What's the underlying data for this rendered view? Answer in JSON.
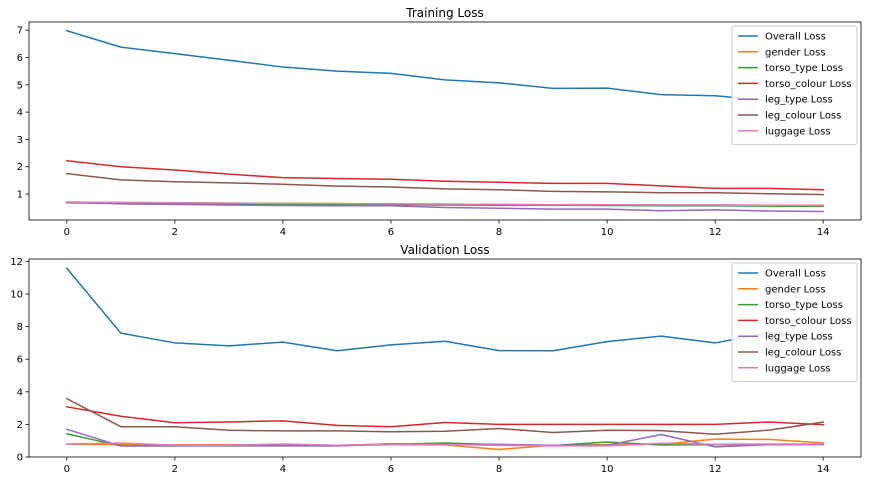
{
  "chart_data": [
    {
      "type": "line",
      "title": "Training Loss",
      "xlabel": "",
      "ylabel": "",
      "x": [
        0,
        1,
        2,
        3,
        4,
        5,
        6,
        7,
        8,
        9,
        10,
        11,
        12,
        13,
        14
      ],
      "xlim": [
        -0.7,
        14.7
      ],
      "ylim": [
        0.05,
        7.3
      ],
      "xticks": [
        0,
        2,
        4,
        6,
        8,
        10,
        12,
        14
      ],
      "yticks": [
        1,
        2,
        3,
        4,
        5,
        6,
        7
      ],
      "legend": "top-right",
      "series": [
        {
          "name": "Overall Loss",
          "color": "#1f77b4",
          "values": [
            6.98,
            6.38,
            6.14,
            5.9,
            5.65,
            5.5,
            5.42,
            5.18,
            5.07,
            4.87,
            4.88,
            4.64,
            4.6,
            4.42,
            4.38
          ]
        },
        {
          "name": "gender Loss",
          "color": "#ff7f0e",
          "values": [
            0.7,
            0.69,
            0.68,
            0.67,
            0.66,
            0.65,
            0.64,
            0.63,
            0.62,
            0.61,
            0.61,
            0.6,
            0.6,
            0.59,
            0.59
          ]
        },
        {
          "name": "torso_type Loss",
          "color": "#2ca02c",
          "values": [
            0.68,
            0.66,
            0.65,
            0.64,
            0.63,
            0.62,
            0.61,
            0.6,
            0.59,
            0.59,
            0.58,
            0.57,
            0.57,
            0.56,
            0.55
          ]
        },
        {
          "name": "torso_colour Loss",
          "color": "#d62728",
          "values": [
            2.22,
            2.0,
            1.88,
            1.73,
            1.6,
            1.57,
            1.54,
            1.47,
            1.43,
            1.39,
            1.39,
            1.3,
            1.21,
            1.21,
            1.16
          ]
        },
        {
          "name": "leg_type Loss",
          "color": "#9467bd",
          "values": [
            0.7,
            0.64,
            0.62,
            0.6,
            0.58,
            0.57,
            0.57,
            0.51,
            0.48,
            0.45,
            0.45,
            0.39,
            0.42,
            0.38,
            0.36
          ]
        },
        {
          "name": "leg_colour Loss",
          "color": "#8c564b",
          "values": [
            1.75,
            1.52,
            1.45,
            1.41,
            1.36,
            1.29,
            1.26,
            1.19,
            1.16,
            1.1,
            1.08,
            1.05,
            1.05,
            1.01,
            0.98
          ]
        },
        {
          "name": "luggage Loss",
          "color": "#e377c2",
          "values": [
            0.71,
            0.69,
            0.68,
            0.67,
            0.66,
            0.65,
            0.64,
            0.63,
            0.62,
            0.61,
            0.61,
            0.6,
            0.6,
            0.59,
            0.58
          ]
        }
      ]
    },
    {
      "type": "line",
      "title": "Validation Loss",
      "xlabel": "",
      "ylabel": "",
      "x": [
        0,
        1,
        2,
        3,
        4,
        5,
        6,
        7,
        8,
        9,
        10,
        11,
        12,
        13,
        14
      ],
      "xlim": [
        -0.7,
        14.7
      ],
      "ylim": [
        0,
        12.15
      ],
      "xticks": [
        0,
        2,
        4,
        6,
        8,
        10,
        12,
        14
      ],
      "yticks": [
        0,
        2,
        4,
        6,
        8,
        10,
        12
      ],
      "legend": "top-right",
      "series": [
        {
          "name": "Overall Loss",
          "color": "#1f77b4",
          "values": [
            11.58,
            7.6,
            7.0,
            6.82,
            7.05,
            6.52,
            6.88,
            7.1,
            6.53,
            6.52,
            7.08,
            7.42,
            7.0,
            7.62,
            7.2
          ]
        },
        {
          "name": "gender Loss",
          "color": "#ff7f0e",
          "values": [
            0.78,
            0.76,
            0.75,
            0.76,
            0.74,
            0.72,
            0.76,
            0.74,
            0.46,
            0.72,
            0.76,
            0.78,
            1.1,
            1.08,
            0.86
          ]
        },
        {
          "name": "torso_type Loss",
          "color": "#2ca02c",
          "values": [
            1.42,
            0.68,
            0.68,
            0.68,
            0.68,
            0.68,
            0.78,
            0.86,
            0.76,
            0.7,
            0.92,
            0.74,
            0.76,
            0.76,
            0.78
          ]
        },
        {
          "name": "torso_colour Loss",
          "color": "#d62728",
          "values": [
            3.08,
            2.5,
            2.1,
            2.15,
            2.22,
            1.94,
            1.86,
            2.12,
            2.0,
            2.0,
            2.0,
            2.0,
            2.0,
            2.15,
            1.98
          ]
        },
        {
          "name": "leg_type Loss",
          "color": "#9467bd",
          "values": [
            1.7,
            0.68,
            0.68,
            0.7,
            0.7,
            0.68,
            0.82,
            0.78,
            0.78,
            0.72,
            0.72,
            1.38,
            0.62,
            0.76,
            0.76
          ]
        },
        {
          "name": "leg_colour Loss",
          "color": "#8c564b",
          "values": [
            3.58,
            1.86,
            1.86,
            1.64,
            1.6,
            1.6,
            1.55,
            1.58,
            1.75,
            1.5,
            1.64,
            1.62,
            1.4,
            1.65,
            2.14
          ]
        },
        {
          "name": "luggage Loss",
          "color": "#e377c2",
          "values": [
            0.8,
            0.86,
            0.72,
            0.72,
            0.8,
            0.72,
            0.8,
            0.76,
            0.72,
            0.68,
            0.68,
            0.84,
            0.78,
            0.8,
            0.8
          ]
        }
      ]
    }
  ]
}
